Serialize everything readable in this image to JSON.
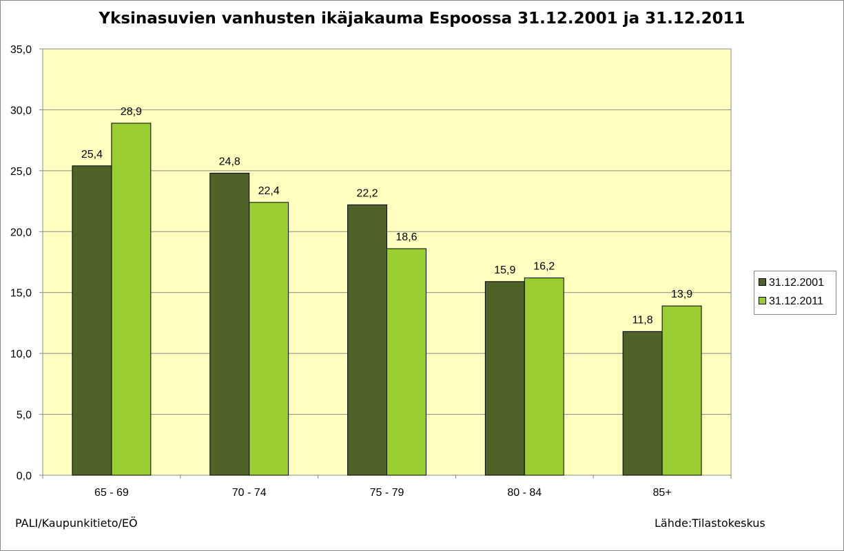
{
  "chart_data": {
    "type": "bar",
    "title": "Yksinasuvien vanhusten ikäjakauma Espoossa 31.12.2001 ja 31.12.2011",
    "categories": [
      "65 - 69",
      "70 - 74",
      "75 - 79",
      "80 - 84",
      "85+"
    ],
    "series": [
      {
        "name": "31.12.2001",
        "values": [
          25.4,
          24.8,
          22.2,
          15.9,
          11.8
        ],
        "labels": [
          "25,4",
          "24,8",
          "22,2",
          "15,9",
          "11,8"
        ],
        "color": "#4f6228"
      },
      {
        "name": "31.12.2011",
        "values": [
          28.9,
          22.4,
          18.6,
          16.2,
          13.9
        ],
        "labels": [
          "28,9",
          "22,4",
          "18,6",
          "16,2",
          "13,9"
        ],
        "color": "#9acd32"
      }
    ],
    "ylim": [
      0,
      35
    ],
    "yticks": [
      "0,0",
      "5,0",
      "10,0",
      "15,0",
      "20,0",
      "25,0",
      "30,0",
      "35,0"
    ],
    "ytick_values": [
      0,
      5,
      10,
      15,
      20,
      25,
      30,
      35
    ],
    "xlabel": "",
    "ylabel": "",
    "grid": true,
    "legend_position": "right",
    "plot_background": "#ffffc0"
  },
  "footer": {
    "left": "PALI/Kaupunkitieto/EÖ",
    "right": "Lähde:Tilastokeskus"
  }
}
